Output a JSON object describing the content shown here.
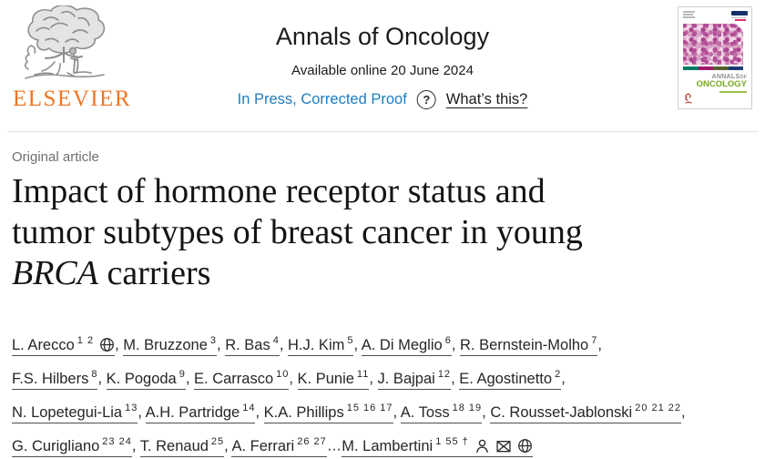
{
  "header": {
    "publisher_wordmark": "ELSEVIER",
    "journal_title": "Annals of Oncology",
    "available_online": "Available online 20 June 2024",
    "status_link": "In Press, Corrected Proof",
    "question_glyph": "?",
    "whats_this_label": "What’s this?",
    "colors": {
      "link_blue": "#1d7dbf",
      "elsevier_orange": "#ef7622"
    },
    "cover": {
      "masthead_annals": "ANNALS",
      "masthead_of": "OF",
      "masthead_oncology": "ONCOLOGY",
      "oncology_green": "#76a81d",
      "band_colors": [
        "#0a7a63",
        "#a01a6d",
        "#55602f",
        "#1f3a72"
      ]
    }
  },
  "article": {
    "kicker": "Original article",
    "title_lines": [
      {
        "text": "Impact of hormone receptor status and"
      },
      {
        "text": "tumor subtypes of breast cancer in young"
      },
      {
        "italic": "BRCA",
        "text": " carriers"
      }
    ]
  },
  "authors": {
    "list": [
      {
        "name": "L. Arecco",
        "sup": "1 2",
        "icons": [
          "globe"
        ],
        "sep": ", "
      },
      {
        "name": "M. Bruzzone",
        "sup": "3",
        "sep": ", "
      },
      {
        "name": "R. Bas",
        "sup": "4",
        "sep": ", "
      },
      {
        "name": "H.J. Kim",
        "sup": "5",
        "sep": ", "
      },
      {
        "name": "A. Di Meglio",
        "sup": "6",
        "sep": ", "
      },
      {
        "name": "R. Bernstein-Molho",
        "sup": "7",
        "sep": ",",
        "break_after": true
      },
      {
        "name": "F.S. Hilbers",
        "sup": "8",
        "sep": ", "
      },
      {
        "name": "K. Pogoda",
        "sup": "9",
        "sep": ", "
      },
      {
        "name": "E. Carrasco",
        "sup": "10",
        "sep": ", "
      },
      {
        "name": "K. Punie",
        "sup": "11",
        "sep": ", "
      },
      {
        "name": "J. Bajpai",
        "sup": "12",
        "sep": ", "
      },
      {
        "name": "E. Agostinetto",
        "sup": "2",
        "sep": ",",
        "break_after": true
      },
      {
        "name": "N. Lopetegui-Lia",
        "sup": "13",
        "sep": ", "
      },
      {
        "name": "A.H. Partridge",
        "sup": "14",
        "sep": ", "
      },
      {
        "name": "K.A. Phillips",
        "sup": "15 16 17",
        "sep": ", "
      },
      {
        "name": "A. Toss",
        "sup": "18 19",
        "sep": ", "
      },
      {
        "name": "C. Rousset-Jablonski",
        "sup": "20 21 22",
        "sep": ",",
        "break_after": true
      },
      {
        "name": "G. Curigliano",
        "sup": "23 24",
        "sep": ", "
      },
      {
        "name": "T. Renaud",
        "sup": "25",
        "sep": ", "
      },
      {
        "name": "A. Ferrari",
        "sup": "26 27",
        "sep": "…"
      },
      {
        "name": "M. Lambertini",
        "sup": "1 55 †",
        "icons": [
          "person",
          "envelope",
          "globe"
        ],
        "sep": ""
      }
    ]
  }
}
